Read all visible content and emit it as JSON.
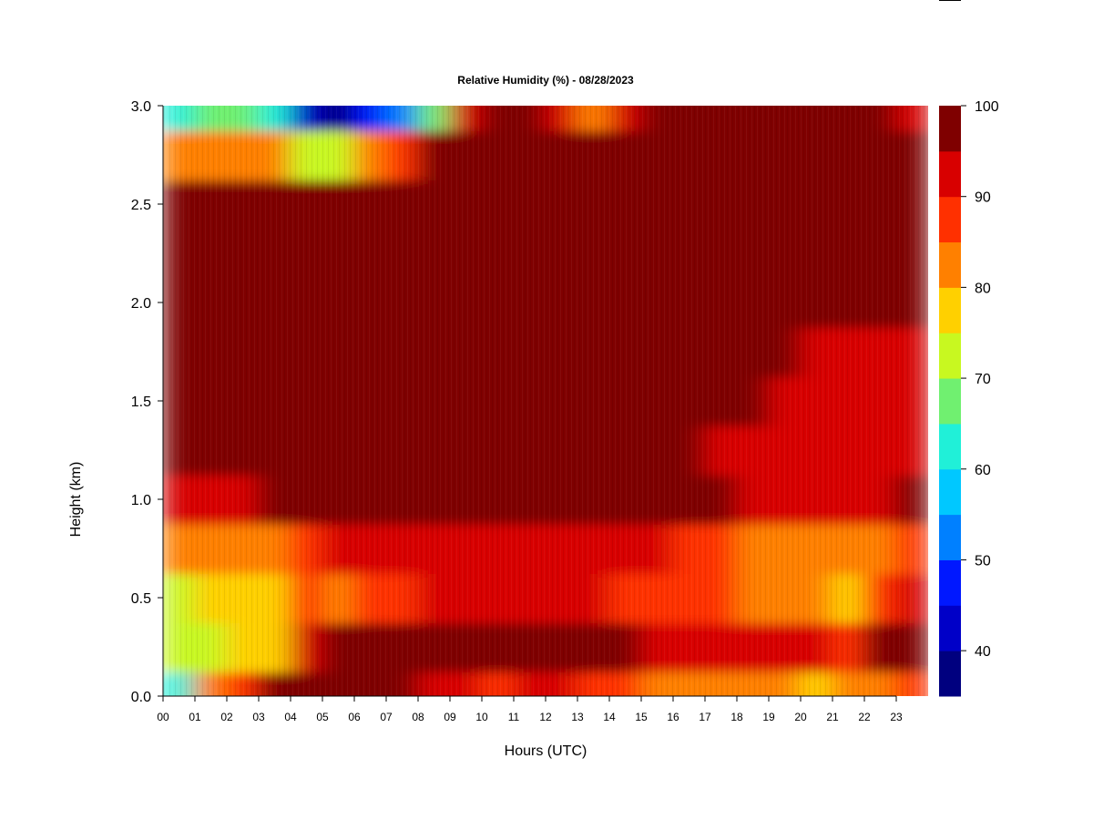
{
  "chart_data": {
    "type": "heatmap",
    "title": "Relative Humidity (%) - 08/28/2023",
    "xlabel": "Hours (UTC)",
    "ylabel": "Height (km)",
    "xlim": [
      0,
      24
    ],
    "ylim": [
      0.0,
      3.0
    ],
    "x_ticks": [
      "00",
      "01",
      "02",
      "03",
      "04",
      "05",
      "06",
      "07",
      "08",
      "09",
      "10",
      "11",
      "12",
      "13",
      "14",
      "15",
      "16",
      "17",
      "18",
      "19",
      "20",
      "21",
      "22",
      "23"
    ],
    "y_ticks": [
      "0.0",
      "0.5",
      "1.0",
      "1.5",
      "2.0",
      "2.5",
      "3.0"
    ],
    "colorbar": {
      "min": 35,
      "max": 100,
      "step": 5,
      "tick_labels": [
        "40",
        "50",
        "60",
        "70",
        "80",
        "90",
        "100"
      ],
      "colors": [
        "#00007f",
        "#0000c8",
        "#0018ff",
        "#0080ff",
        "#00c8ff",
        "#20f0d8",
        "#70f070",
        "#c8f820",
        "#ffd000",
        "#ff8000",
        "#ff3000",
        "#d80000",
        "#7f0000"
      ]
    },
    "columns_hours": [
      0,
      1,
      2,
      3,
      4,
      5,
      6,
      7,
      8,
      9,
      10,
      11,
      12,
      13,
      14,
      15,
      16,
      17,
      18,
      19,
      20,
      21,
      22,
      23
    ],
    "heights_km": [
      0.0,
      0.25,
      0.5,
      0.75,
      1.0,
      1.25,
      1.5,
      1.75,
      2.0,
      2.25,
      2.5,
      2.75,
      3.0
    ],
    "z": [
      [
        62,
        82,
        85,
        95,
        97,
        97,
        96,
        95,
        94,
        92,
        87,
        90,
        92,
        89,
        86,
        84,
        82,
        80,
        81,
        80,
        78,
        80,
        83,
        88
      ],
      [
        70,
        74,
        76,
        78,
        92,
        97,
        100,
        100,
        100,
        100,
        100,
        98,
        97,
        96,
        95,
        94,
        94,
        92,
        90,
        90,
        90,
        89,
        96,
        96
      ],
      [
        72,
        75,
        76,
        79,
        88,
        84,
        85,
        88,
        90,
        90,
        92,
        90,
        90,
        90,
        88,
        88,
        87,
        86,
        84,
        82,
        80,
        75,
        85,
        90
      ],
      [
        80,
        80,
        80,
        82,
        88,
        90,
        90,
        91,
        92,
        92,
        92,
        92,
        92,
        92,
        93,
        91,
        88,
        86,
        84,
        82,
        80,
        80,
        84,
        86
      ],
      [
        94,
        94,
        94,
        95,
        96,
        97,
        98,
        100,
        100,
        100,
        100,
        100,
        98,
        99,
        100,
        98,
        97,
        95,
        93,
        92,
        92,
        91,
        93,
        95
      ],
      [
        100,
        100,
        100,
        100,
        100,
        100,
        100,
        100,
        100,
        100,
        100,
        100,
        100,
        100,
        100,
        100,
        96,
        94,
        93,
        93,
        92,
        92,
        92,
        94
      ],
      [
        100,
        100,
        100,
        100,
        100,
        100,
        100,
        100,
        100,
        100,
        100,
        100,
        100,
        100,
        100,
        100,
        100,
        96,
        95,
        93,
        92,
        92,
        92,
        93
      ],
      [
        100,
        100,
        100,
        100,
        100,
        100,
        100,
        100,
        100,
        100,
        100,
        100,
        100,
        100,
        100,
        100,
        100,
        100,
        96,
        95,
        94,
        93,
        93,
        93
      ],
      [
        100,
        100,
        100,
        100,
        100,
        100,
        100,
        100,
        100,
        100,
        100,
        100,
        100,
        100,
        100,
        100,
        100,
        100,
        100,
        100,
        98,
        96,
        95,
        95
      ],
      [
        100,
        100,
        100,
        100,
        100,
        100,
        100,
        100,
        100,
        100,
        100,
        100,
        100,
        100,
        100,
        100,
        100,
        100,
        100,
        100,
        100,
        100,
        100,
        98
      ],
      [
        99,
        99,
        99,
        99,
        98,
        98,
        99,
        96,
        100,
        100,
        100,
        100,
        100,
        100,
        100,
        100,
        100,
        100,
        100,
        100,
        100,
        100,
        100,
        100
      ],
      [
        84,
        82,
        84,
        82,
        72,
        74,
        80,
        88,
        96,
        100,
        100,
        100,
        98,
        98,
        100,
        100,
        100,
        100,
        100,
        100,
        100,
        100,
        100,
        97
      ],
      [
        60,
        68,
        66,
        62,
        42,
        38,
        46,
        52,
        66,
        94,
        96,
        97,
        94,
        80,
        94,
        96,
        97,
        96,
        96,
        96,
        96,
        96,
        95,
        94
      ]
    ]
  }
}
